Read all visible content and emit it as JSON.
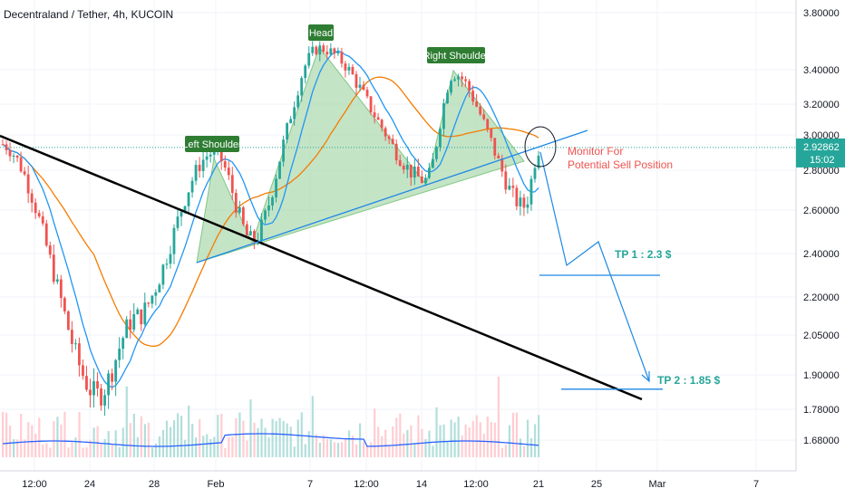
{
  "header": {
    "title": "Decentraland / Tether, 4h, KUCOIN"
  },
  "price_scale": {
    "ticks": [
      "3.80000",
      "3.40000",
      "3.20000",
      "3.00000",
      "2.80000",
      "2.60000",
      "2.40000",
      "2.20000",
      "2.05000",
      "1.90000",
      "1.78000",
      "1.68000"
    ],
    "current_price": "2.92862",
    "countdown": "15:02"
  },
  "time_scale": {
    "ticks": [
      "12:00",
      "24",
      "28",
      "Feb",
      "7",
      "12:00",
      "14",
      "12:00",
      "21",
      "25",
      "Mar",
      "7"
    ]
  },
  "annotations": {
    "left_shoulder": "Left Shoulder",
    "head": "Head",
    "right_shoulder": "Right Shoulder",
    "monitor_line1": "Monitor For",
    "monitor_line2": "Potential Sell Position",
    "tp1": "TP 1 : 2.3 $",
    "tp2": "TP 2 : 1.85 $"
  },
  "colors": {
    "up": "#26a69a",
    "down": "#ef5350",
    "ma_fast": "#2196f3",
    "ma_slow": "#f57c00",
    "pattern_fill": "#a5d6a7",
    "label_bg": "#2e7d32",
    "tp_text": "#26a69a",
    "monitor_text": "#ef5350",
    "price_badge": "#26a69a"
  },
  "chart_data": {
    "type": "candlestick",
    "symbol": "Decentraland / Tether",
    "interval": "4h",
    "exchange": "KUCOIN",
    "price_axis_ticks": [
      3.8,
      3.4,
      3.2,
      3.0,
      2.8,
      2.6,
      2.4,
      2.2,
      2.05,
      1.9,
      1.78,
      1.68
    ],
    "current_price": 2.92862,
    "key_levels": [
      {
        "name": "TP 1",
        "value": 2.3
      },
      {
        "name": "TP 2",
        "value": 1.85
      }
    ],
    "pattern": "head and shoulders",
    "anchors": [
      {
        "label": "start",
        "price": 2.95
      },
      {
        "label": "low-23",
        "price": 1.83
      },
      {
        "label": "jan-28",
        "price": 2.12
      },
      {
        "label": "left-shoulder",
        "price": 2.9
      },
      {
        "label": "neck-1",
        "price": 2.46
      },
      {
        "label": "head",
        "price": 3.55
      },
      {
        "label": "neck-2",
        "price": 2.75
      },
      {
        "label": "right-shoulder",
        "price": 3.38
      },
      {
        "label": "drop-low",
        "price": 2.62
      },
      {
        "label": "last",
        "price": 2.93
      }
    ]
  }
}
